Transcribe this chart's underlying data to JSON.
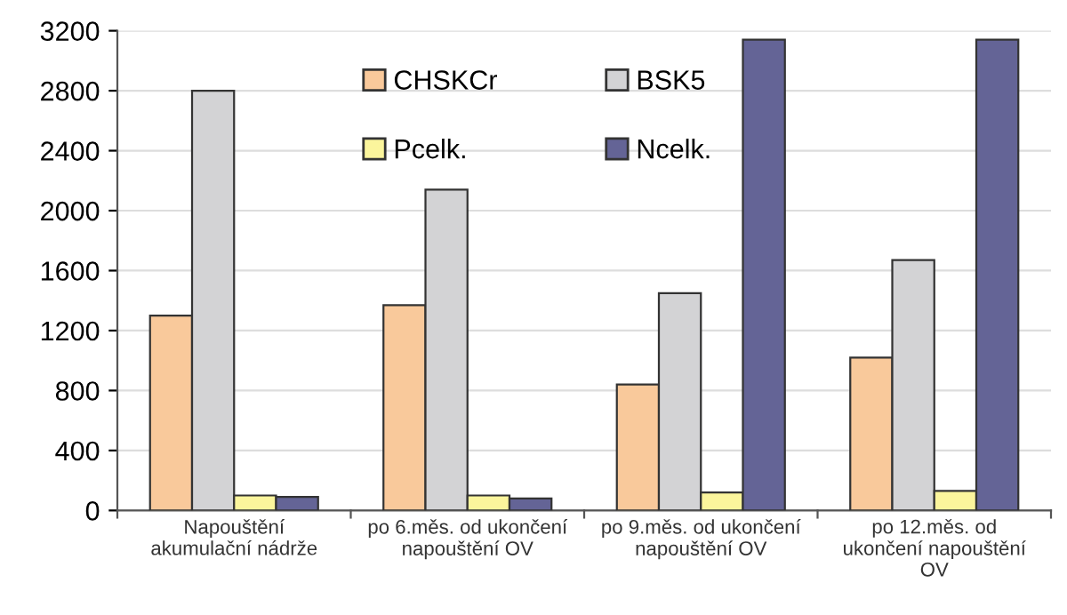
{
  "chart_data": {
    "type": "bar",
    "categories": [
      "Napouštění\nakumulační nádrže",
      "po 6.měs. od ukončení\nnapouštění OV",
      "po 9.měs. od ukončení\nnapouštění OV",
      "po 12.měs. od\nukončení napouštění\nOV"
    ],
    "series": [
      {
        "name": "CHSKCr",
        "color": "#f9c99b",
        "values": [
          1300,
          1370,
          840,
          1020
        ]
      },
      {
        "name": "BSK5",
        "color": "#d3d3d5",
        "values": [
          2800,
          2140,
          1450,
          1670
        ]
      },
      {
        "name": "Pcelk.",
        "color": "#fbf59c",
        "values": [
          100,
          100,
          120,
          130
        ]
      },
      {
        "name": "Ncelk.",
        "color": "#646496",
        "values": [
          90,
          80,
          3140,
          3140
        ]
      }
    ],
    "ylim": [
      0,
      3200
    ],
    "yticks": [
      0,
      400,
      800,
      1200,
      1600,
      2000,
      2400,
      2800,
      3200
    ],
    "grid": "y",
    "legend": "top"
  }
}
